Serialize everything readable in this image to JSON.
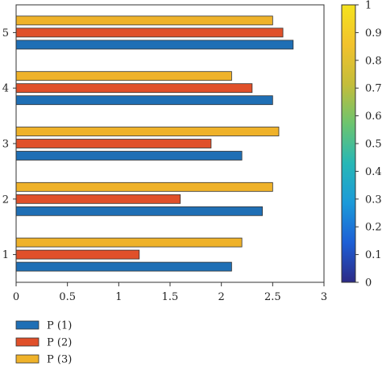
{
  "chart_data": {
    "type": "bar",
    "orientation": "horizontal",
    "categories": [
      "1",
      "2",
      "3",
      "4",
      "5"
    ],
    "series": [
      {
        "name": "P (1)",
        "color": "#1f6fb5",
        "values": [
          2.1,
          2.4,
          2.2,
          2.5,
          2.7
        ]
      },
      {
        "name": "P (2)",
        "color": "#e0502a",
        "values": [
          1.2,
          1.6,
          1.9,
          2.3,
          2.6
        ]
      },
      {
        "name": "P (3)",
        "color": "#efb22a",
        "values": [
          2.2,
          2.5,
          2.56,
          2.1,
          2.5
        ]
      }
    ],
    "x_ticks": [
      "0",
      "0.5",
      "1",
      "1.5",
      "2",
      "2.5",
      "3"
    ],
    "xlim": [
      0,
      3
    ],
    "legend_position": "bottom-left",
    "colorbar": {
      "ticks": [
        "0",
        "0.1",
        "0.2",
        "0.3",
        "0.4",
        "0.5",
        "0.6",
        "0.7",
        "0.8",
        "0.9",
        "1"
      ],
      "range": [
        0,
        1
      ],
      "colors": [
        "#2c2a86",
        "#1d5fd6",
        "#1c9ad9",
        "#27b7b6",
        "#6cc46f",
        "#c4bd3a",
        "#f2c22d",
        "#f4e31e"
      ]
    },
    "grid": false
  }
}
